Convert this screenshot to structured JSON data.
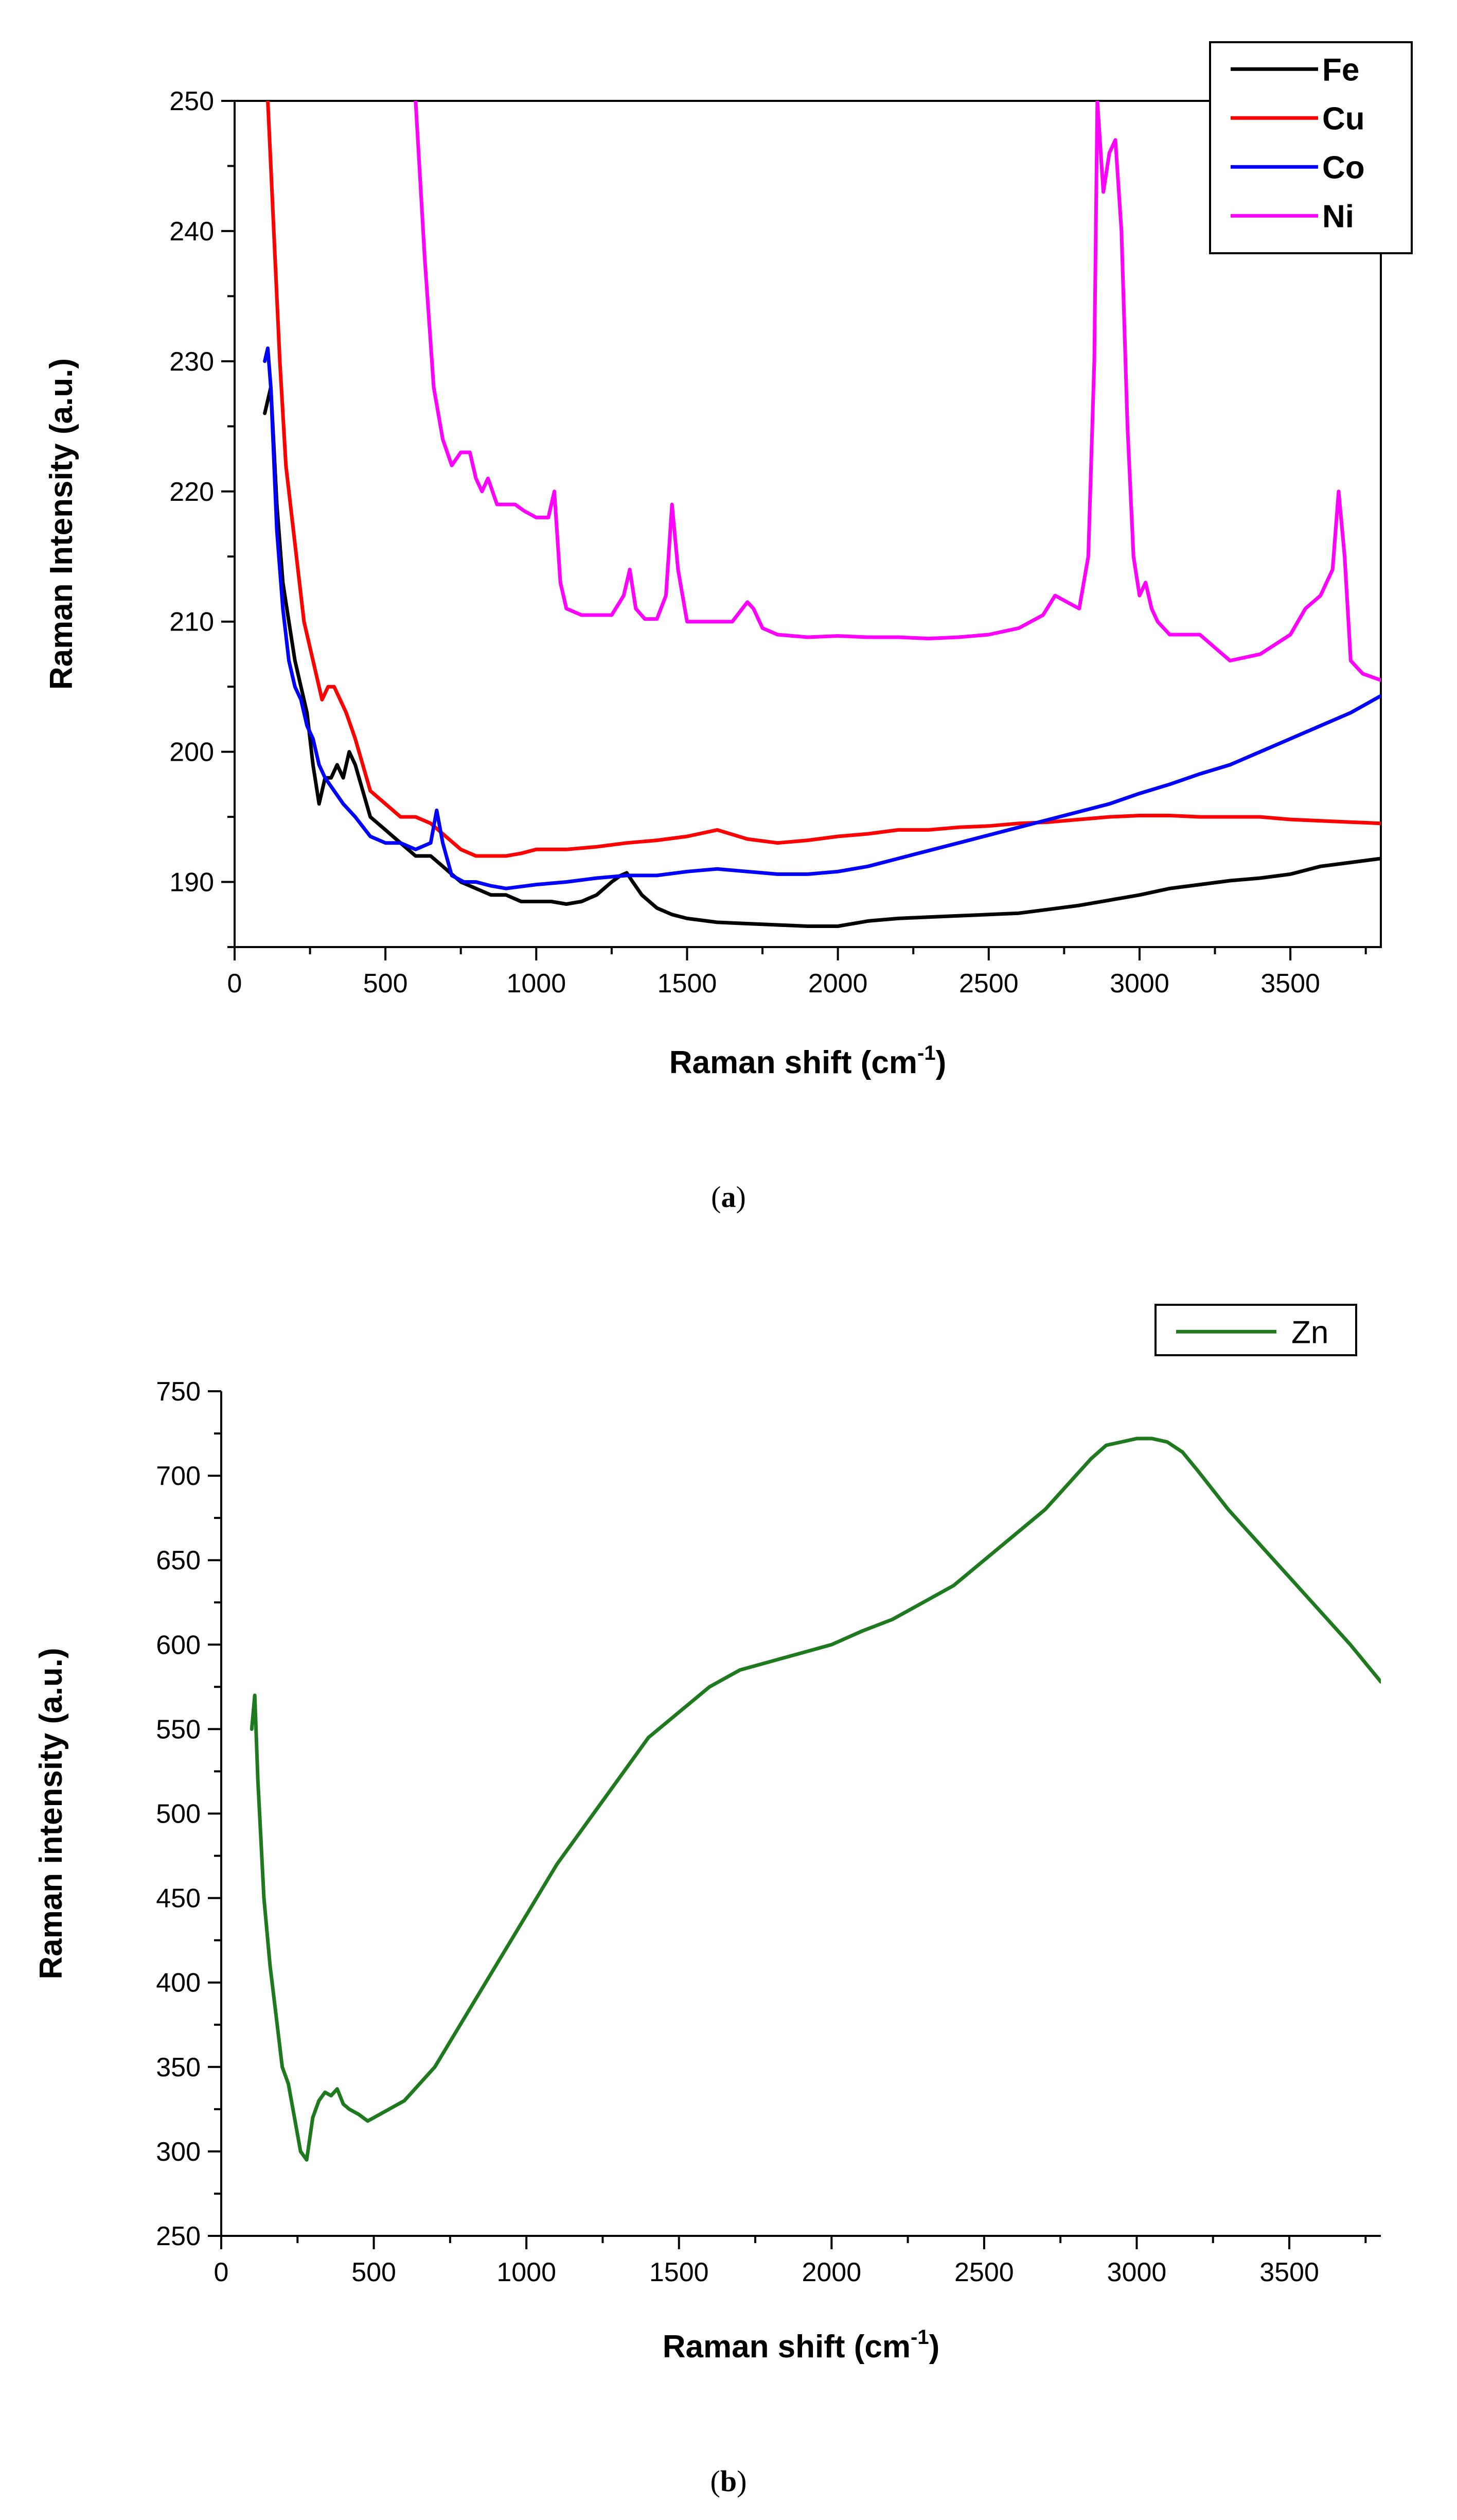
{
  "chart_data": [
    {
      "type": "line",
      "panel_label": "a",
      "xlabel": "Raman shift (cm",
      "xlabel_sup": "-1",
      "xlabel_suffix": ")",
      "ylabel": "Raman Intensity (a.u.)",
      "xlim": [
        0,
        3800
      ],
      "ylim": [
        185,
        250
      ],
      "xticks": [
        0,
        500,
        1000,
        1500,
        2000,
        2500,
        3000,
        3500
      ],
      "yticks": [
        190,
        200,
        210,
        220,
        230,
        240,
        250
      ],
      "legend_position": "top-right",
      "series": [
        {
          "name": "Fe",
          "color": "#000000",
          "x": [
            100,
            120,
            140,
            160,
            180,
            200,
            220,
            240,
            260,
            280,
            300,
            320,
            340,
            360,
            380,
            400,
            450,
            500,
            550,
            600,
            650,
            700,
            750,
            800,
            850,
            900,
            950,
            1000,
            1050,
            1100,
            1150,
            1200,
            1250,
            1280,
            1300,
            1320,
            1350,
            1400,
            1450,
            1500,
            1600,
            1700,
            1800,
            1900,
            2000,
            2100,
            2200,
            2300,
            2400,
            2500,
            2600,
            2700,
            2800,
            2900,
            3000,
            3100,
            3200,
            3300,
            3400,
            3500,
            3600,
            3700,
            3800
          ],
          "y": [
            226,
            228,
            219,
            213,
            210,
            207,
            205,
            203,
            199,
            196,
            198,
            198,
            199,
            198,
            200,
            199,
            195,
            194,
            193,
            192,
            192,
            191,
            190,
            189.5,
            189,
            189,
            188.5,
            188.5,
            188.5,
            188.3,
            188.5,
            189,
            190,
            190.5,
            190.7,
            190,
            189,
            188,
            187.5,
            187.2,
            186.9,
            186.8,
            186.7,
            186.6,
            186.6,
            187,
            187.2,
            187.3,
            187.4,
            187.5,
            187.6,
            187.9,
            188.2,
            188.6,
            189,
            189.5,
            189.8,
            190.1,
            190.3,
            190.6,
            191.2,
            191.5,
            191.8
          ]
        },
        {
          "name": "Cu",
          "color": "#ff0000",
          "x": [
            110,
            120,
            130,
            150,
            170,
            190,
            210,
            230,
            250,
            270,
            290,
            310,
            330,
            350,
            370,
            400,
            450,
            500,
            550,
            600,
            650,
            700,
            750,
            800,
            850,
            900,
            950,
            1000,
            1100,
            1200,
            1300,
            1400,
            1500,
            1600,
            1700,
            1800,
            1900,
            2000,
            2100,
            2200,
            2300,
            2400,
            2500,
            2600,
            2700,
            2800,
            2900,
            3000,
            3100,
            3200,
            3300,
            3400,
            3500,
            3600,
            3700,
            3800
          ],
          "y": [
            250,
            245,
            240,
            230,
            222,
            218,
            214,
            210,
            208,
            206,
            204,
            205,
            205,
            204,
            203,
            201,
            197,
            196,
            195,
            195,
            194.5,
            193.5,
            192.5,
            192,
            192,
            192,
            192.2,
            192.5,
            192.5,
            192.7,
            193,
            193.2,
            193.5,
            194,
            193.3,
            193,
            193.2,
            193.5,
            193.7,
            194,
            194,
            194.2,
            194.3,
            194.5,
            194.6,
            194.8,
            195,
            195.1,
            195.1,
            195,
            195,
            195,
            194.8,
            194.7,
            194.6,
            194.5
          ]
        },
        {
          "name": "Co",
          "color": "#0000ff",
          "x": [
            100,
            110,
            120,
            140,
            160,
            180,
            200,
            220,
            240,
            260,
            280,
            300,
            330,
            360,
            400,
            450,
            500,
            550,
            600,
            650,
            670,
            690,
            720,
            760,
            800,
            850,
            900,
            1000,
            1100,
            1200,
            1300,
            1400,
            1500,
            1600,
            1700,
            1800,
            1900,
            2000,
            2100,
            2200,
            2300,
            2400,
            2500,
            2600,
            2700,
            2800,
            2900,
            3000,
            3100,
            3200,
            3300,
            3400,
            3500,
            3600,
            3700,
            3800
          ],
          "y": [
            230,
            231,
            228,
            217,
            211,
            207,
            205,
            204,
            202,
            201,
            199,
            198,
            197,
            196,
            195,
            193.5,
            193,
            193,
            192.5,
            193,
            195.5,
            193,
            190.5,
            190,
            190,
            189.7,
            189.5,
            189.8,
            190,
            190.3,
            190.5,
            190.5,
            190.8,
            191,
            190.8,
            190.6,
            190.6,
            190.8,
            191.2,
            191.8,
            192.4,
            193,
            193.6,
            194.2,
            194.8,
            195.4,
            196,
            196.8,
            197.5,
            198.3,
            199,
            200,
            201,
            202,
            203,
            204.3
          ]
        },
        {
          "name": "Ni",
          "color": "#ff00ff",
          "x": [
            600,
            630,
            660,
            690,
            720,
            750,
            780,
            800,
            820,
            840,
            870,
            900,
            930,
            960,
            1000,
            1040,
            1060,
            1080,
            1100,
            1150,
            1200,
            1250,
            1290,
            1310,
            1330,
            1360,
            1400,
            1430,
            1450,
            1470,
            1500,
            1550,
            1600,
            1650,
            1700,
            1720,
            1750,
            1800,
            1900,
            2000,
            2100,
            2200,
            2300,
            2400,
            2500,
            2600,
            2680,
            2720,
            2760,
            2800,
            2830,
            2850,
            2860,
            2880,
            2900,
            2920,
            2940,
            2960,
            2980,
            3000,
            3020,
            3040,
            3060,
            3100,
            3200,
            3300,
            3400,
            3500,
            3550,
            3600,
            3640,
            3660,
            3680,
            3700,
            3740,
            3800
          ],
          "y": [
            250,
            238,
            228,
            224,
            222,
            223,
            223,
            221,
            220,
            221,
            219,
            219,
            219,
            218.5,
            218,
            218,
            220,
            213,
            211,
            210.5,
            210.5,
            210.5,
            212,
            214,
            211,
            210.2,
            210.2,
            212,
            219,
            214,
            210,
            210,
            210,
            210,
            211.5,
            211,
            209.5,
            209,
            208.8,
            208.9,
            208.8,
            208.8,
            208.7,
            208.8,
            209,
            209.5,
            210.5,
            212,
            211.5,
            211,
            215,
            230,
            250,
            243,
            246,
            247,
            240,
            225,
            215,
            212,
            213,
            211,
            210,
            209,
            209,
            207,
            207.5,
            209,
            211,
            212,
            214,
            220,
            215,
            207,
            206,
            205.5
          ]
        }
      ]
    },
    {
      "type": "line",
      "panel_label": "b",
      "xlabel": "Raman shift (cm",
      "xlabel_sup": "-1",
      "xlabel_suffix": ")",
      "ylabel": "Raman intensity (a.u.)",
      "xlim": [
        0,
        3800
      ],
      "ylim": [
        250,
        750
      ],
      "xticks": [
        0,
        500,
        1000,
        1500,
        2000,
        2500,
        3000,
        3500
      ],
      "yticks": [
        250,
        300,
        350,
        400,
        450,
        500,
        550,
        600,
        650,
        700,
        750
      ],
      "legend_position": "top-right",
      "series": [
        {
          "name": "Zn",
          "color": "#1f7a1f",
          "x": [
            100,
            110,
            120,
            140,
            160,
            180,
            200,
            220,
            240,
            260,
            280,
            300,
            320,
            340,
            360,
            380,
            400,
            420,
            450,
            480,
            500,
            550,
            600,
            700,
            800,
            900,
            1000,
            1100,
            1200,
            1300,
            1400,
            1500,
            1600,
            1700,
            1800,
            1900,
            2000,
            2100,
            2200,
            2300,
            2400,
            2500,
            2600,
            2700,
            2800,
            2850,
            2900,
            2950,
            3000,
            3050,
            3100,
            3150,
            3200,
            3300,
            3400,
            3500,
            3600,
            3700,
            3800
          ],
          "y": [
            550,
            570,
            520,
            450,
            410,
            380,
            350,
            340,
            320,
            300,
            295,
            320,
            330,
            335,
            333,
            337,
            328,
            325,
            322,
            318,
            320,
            325,
            330,
            350,
            380,
            410,
            440,
            470,
            495,
            520,
            545,
            560,
            575,
            585,
            590,
            595,
            600,
            608,
            615,
            625,
            635,
            650,
            665,
            680,
            700,
            710,
            718,
            720,
            722,
            722,
            720,
            714,
            703,
            680,
            660,
            640,
            620,
            600,
            578
          ]
        }
      ]
    }
  ],
  "captions": [
    "(a)",
    "(b)"
  ]
}
